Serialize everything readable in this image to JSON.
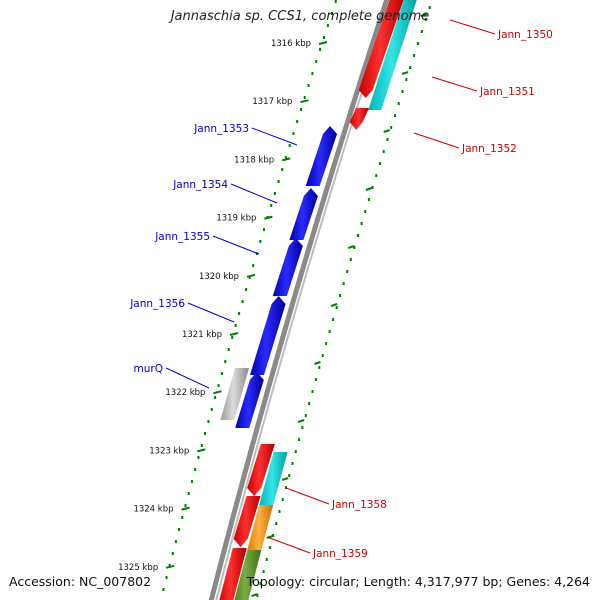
{
  "title": "Jannaschia sp. CCS1, complete genome",
  "accession": "Accession: NC_007802",
  "topology": "Topology: circular; Length: 4,317,977 bp; Genes: 4,264",
  "ticks": [
    {
      "label": "1316 kbp"
    },
    {
      "label": "1317 kbp"
    },
    {
      "label": "1318 kbp"
    },
    {
      "label": "1319 kbp"
    },
    {
      "label": "1320 kbp"
    },
    {
      "label": "1321 kbp"
    },
    {
      "label": "1322 kbp"
    },
    {
      "label": "1323 kbp"
    },
    {
      "label": "1324 kbp"
    },
    {
      "label": "1325 kbp"
    }
  ],
  "genes": [
    {
      "label": "Jann_1350",
      "strand": "forward"
    },
    {
      "label": "Jann_1351",
      "strand": "forward"
    },
    {
      "label": "Jann_1352",
      "strand": "forward"
    },
    {
      "label": "Jann_1353",
      "strand": "reverse"
    },
    {
      "label": "Jann_1354",
      "strand": "reverse"
    },
    {
      "label": "Jann_1355",
      "strand": "reverse"
    },
    {
      "label": "Jann_1356",
      "strand": "reverse"
    },
    {
      "label": "murQ",
      "strand": "reverse"
    },
    {
      "label": "Jann_1358",
      "strand": "forward"
    },
    {
      "label": "Jann_1359",
      "strand": "forward"
    }
  ],
  "colors": {
    "cds_red": "#ff0000",
    "cds_blue": "#0000ee",
    "cyan": "#00d2d2",
    "orange": "#ff9900",
    "olive": "#669933",
    "gray": "#b4b4b4",
    "backbone": "#8a8a8a",
    "tick_green": "#008000",
    "forward_label": "#cc0000",
    "reverse_label": "#0000cc"
  }
}
